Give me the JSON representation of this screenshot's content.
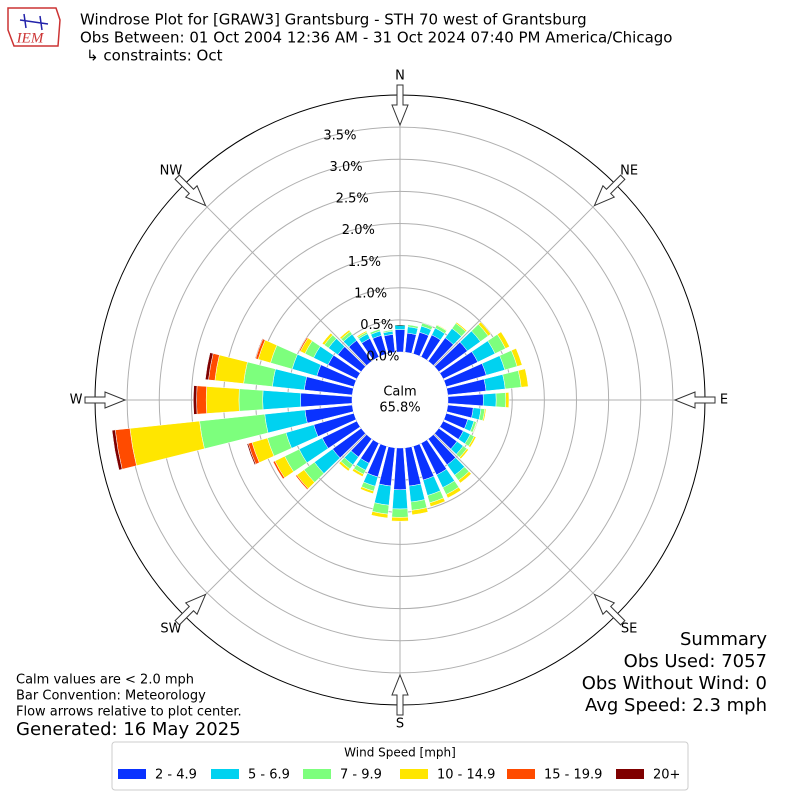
{
  "chart_data": {
    "type": "windrose",
    "title_lines": [
      "Windrose Plot for [GRAW3] Grantsburg - STH 70 west of Grantsburg",
      "Obs Between: 01 Oct 2004 12:36 AM - 31 Oct 2024 07:40 PM America/Chicago",
      "↳ constraints: Oct"
    ],
    "logo": "IEM",
    "compass_labels": [
      "N",
      "NE",
      "E",
      "SE",
      "S",
      "SW",
      "W",
      "NW"
    ],
    "calm_label": "Calm",
    "calm_value": 65.8,
    "calm_value_label": "65.8%",
    "ylim": [
      0,
      4
    ],
    "yticks": [
      {
        "value": 0,
        "label": "0.0%"
      },
      {
        "value": 0.5,
        "label": "0.5%"
      },
      {
        "value": 1,
        "label": "1.0%"
      },
      {
        "value": 1.5,
        "label": "1.5%"
      },
      {
        "value": 2,
        "label": "2.0%"
      },
      {
        "value": 2.5,
        "label": "2.5%"
      },
      {
        "value": 3,
        "label": "3.0%"
      },
      {
        "value": 3.5,
        "label": "3.5%"
      }
    ],
    "grid": true,
    "x": [
      0,
      10,
      20,
      30,
      40,
      50,
      60,
      70,
      80,
      90,
      100,
      110,
      120,
      130,
      140,
      150,
      160,
      170,
      180,
      190,
      200,
      210,
      220,
      230,
      240,
      250,
      260,
      270,
      280,
      290,
      300,
      310,
      320,
      330,
      340,
      350
    ],
    "legend_title": "Wind Speed [mph]",
    "series": [
      {
        "name": "2 - 4.9",
        "color": "#0a32ff",
        "values": [
          0.35,
          0.3,
          0.35,
          0.38,
          0.45,
          0.55,
          0.6,
          0.65,
          0.6,
          0.55,
          0.4,
          0.35,
          0.35,
          0.35,
          0.5,
          0.55,
          0.55,
          0.6,
          0.65,
          0.6,
          0.5,
          0.35,
          0.35,
          0.55,
          0.6,
          0.65,
          0.74,
          0.8,
          0.75,
          0.6,
          0.5,
          0.45,
          0.4,
          0.32,
          0.3,
          0.28
        ]
      },
      {
        "name": "5 - 6.9",
        "color": "#00d2f0",
        "values": [
          0.07,
          0.1,
          0.1,
          0.12,
          0.18,
          0.25,
          0.3,
          0.3,
          0.3,
          0.2,
          0.12,
          0.1,
          0.12,
          0.12,
          0.2,
          0.22,
          0.25,
          0.25,
          0.3,
          0.3,
          0.15,
          0.12,
          0.15,
          0.35,
          0.4,
          0.45,
          0.63,
          0.59,
          0.5,
          0.4,
          0.25,
          0.18,
          0.12,
          0.08,
          0.07,
          0.05
        ]
      },
      {
        "name": "7 - 9.9",
        "color": "#7dff7d",
        "values": [
          0,
          0.03,
          0.05,
          0.05,
          0.1,
          0.15,
          0.18,
          0.2,
          0.25,
          0.15,
          0.06,
          0.04,
          0.07,
          0.07,
          0.1,
          0.12,
          0.12,
          0.13,
          0.13,
          0.14,
          0.08,
          0.07,
          0.08,
          0.2,
          0.25,
          0.3,
          1.02,
          0.37,
          0.45,
          0.35,
          0.15,
          0.08,
          0.05,
          0.03,
          0.03,
          0.02
        ]
      },
      {
        "name": "10 - 14.9",
        "color": "#ffe600",
        "values": [
          0,
          0,
          0,
          0.01,
          0.02,
          0.05,
          0.07,
          0.08,
          0.11,
          0.05,
          0.02,
          0.01,
          0.03,
          0.03,
          0.05,
          0.06,
          0.06,
          0.07,
          0.06,
          0.06,
          0.04,
          0.04,
          0.04,
          0.14,
          0.17,
          0.25,
          1.09,
          0.51,
          0.45,
          0.2,
          0.08,
          0.04,
          0.03,
          0.02,
          0,
          0
        ]
      },
      {
        "name": "15 - 19.9",
        "color": "#ff4b00",
        "values": [
          0,
          0,
          0,
          0,
          0,
          0,
          0,
          0,
          0,
          0,
          0,
          0,
          0,
          0,
          0,
          0,
          0,
          0,
          0,
          0,
          0,
          0,
          0,
          0.02,
          0.03,
          0.06,
          0.23,
          0.15,
          0.1,
          0.04,
          0.02,
          0,
          0,
          0,
          0,
          0
        ]
      },
      {
        "name": "20+",
        "color": "#7f0000",
        "values": [
          0,
          0,
          0,
          0,
          0,
          0,
          0,
          0,
          0,
          0,
          0,
          0,
          0,
          0,
          0,
          0,
          0,
          0,
          0,
          0,
          0,
          0,
          0,
          0,
          0,
          0.02,
          0.05,
          0.05,
          0.05,
          0.01,
          0,
          0,
          0,
          0,
          0,
          0
        ]
      }
    ],
    "notes": [
      "Calm values are < 2.0 mph",
      "Bar Convention: Meteorology",
      "Flow arrows relative to plot center."
    ],
    "generated": "Generated: 16 May 2025",
    "summary": [
      "Summary",
      "Obs Used: 7057",
      "Obs Without Wind: 0",
      "Avg Speed: 2.3 mph"
    ]
  }
}
